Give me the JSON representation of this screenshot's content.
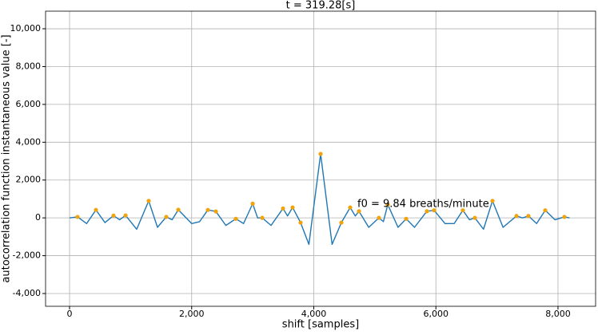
{
  "chart_data": {
    "type": "line",
    "title": "t = 319.28[s]",
    "xlabel": "shift [samples]",
    "ylabel": "autocorrelation function instantaneous value [-]",
    "annotation": "f0 = 9.84 breaths/minute",
    "xlim": [
      -393,
      8616
    ],
    "ylim": [
      -4675,
      10930
    ],
    "xticks": [
      0,
      {
        "value": 2000,
        "label": "2,000"
      },
      {
        "value": 4000,
        "label": "4,000"
      },
      {
        "value": 6000,
        "label": "6,000"
      },
      {
        "value": 8000,
        "label": "8,000"
      }
    ],
    "yticks": [
      {
        "value": -4000,
        "label": "-4,000"
      },
      {
        "value": -2000,
        "label": "-2,000"
      },
      0,
      {
        "value": 2000,
        "label": "2,000"
      },
      {
        "value": 4000,
        "label": "4,000"
      },
      {
        "value": 6000,
        "label": "6,000"
      },
      {
        "value": 8000,
        "label": "8,000"
      },
      {
        "value": 10000,
        "label": "10,000"
      }
    ],
    "grid": true,
    "series": [
      {
        "color": "#1f77b4",
        "x": [
          0,
          131,
          280,
          432,
          580,
          720,
          820,
          917,
          1100,
          1296,
          1440,
          1584,
          1680,
          1781,
          2000,
          2130,
          2265,
          2396,
          2560,
          2724,
          2850,
          2999,
          3080,
          3156,
          3300,
          3496,
          3570,
          3653,
          3784,
          3920,
          4112,
          4300,
          4452,
          4596,
          4680,
          4740,
          4900,
          5067,
          5140,
          5212,
          5380,
          5513,
          5650,
          5853,
          5971,
          6150,
          6300,
          6442,
          6550,
          6639,
          6780,
          6927,
          7100,
          7320,
          7420,
          7516,
          7650,
          7791,
          7950,
          8105,
          8190
        ],
        "values": [
          0,
          50,
          -300,
          420,
          -250,
          120,
          -100,
          130,
          -600,
          900,
          -500,
          50,
          -100,
          430,
          -300,
          -200,
          420,
          340,
          -400,
          -50,
          -300,
          750,
          0,
          0,
          -400,
          500,
          100,
          550,
          -250,
          -1400,
          3380,
          -1400,
          -250,
          550,
          100,
          350,
          -500,
          0,
          -200,
          700,
          -500,
          -50,
          -500,
          350,
          400,
          -300,
          -300,
          400,
          -100,
          0,
          -600,
          900,
          -500,
          100,
          0,
          100,
          -300,
          400,
          -100,
          50,
          0
        ]
      },
      {
        "color": "#f0a30a",
        "marker": true,
        "x": [
          131,
          432,
          720,
          917,
          1296,
          1584,
          1781,
          2265,
          2396,
          2724,
          2999,
          3156,
          3496,
          3653,
          3784,
          4112,
          4452,
          4596,
          4740,
          5067,
          5212,
          5513,
          5853,
          5971,
          6442,
          6639,
          6927,
          7320,
          7516,
          7791,
          8105
        ],
        "values": [
          50,
          420,
          120,
          130,
          900,
          50,
          430,
          420,
          340,
          -50,
          750,
          0,
          500,
          550,
          -250,
          3380,
          -250,
          550,
          350,
          0,
          700,
          -50,
          350,
          400,
          400,
          0,
          900,
          100,
          100,
          400,
          50
        ]
      }
    ]
  }
}
